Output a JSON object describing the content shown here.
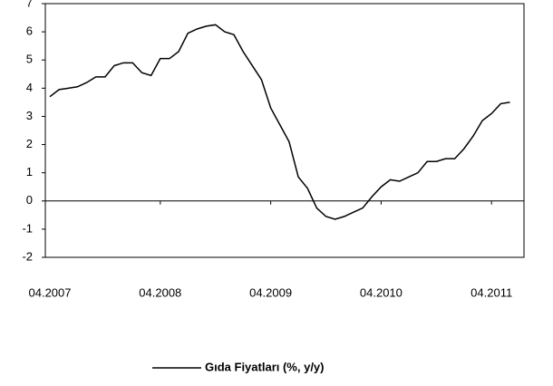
{
  "chart_data": {
    "type": "line",
    "categories": [
      "04.2007",
      null,
      null,
      null,
      null,
      null,
      null,
      null,
      null,
      null,
      null,
      null,
      "04.2008",
      null,
      null,
      null,
      null,
      null,
      null,
      null,
      null,
      null,
      null,
      null,
      "04.2009",
      null,
      null,
      null,
      null,
      null,
      null,
      null,
      null,
      null,
      null,
      null,
      "04.2010",
      null,
      null,
      null,
      null,
      null,
      null,
      null,
      null,
      null,
      null,
      null,
      "04.2011",
      null,
      null
    ],
    "series": [
      {
        "name": "Gıda Fiyatları (%, y/y)",
        "color": "#000000",
        "values": [
          3.7,
          3.95,
          4.0,
          4.05,
          4.2,
          4.4,
          4.4,
          4.8,
          4.9,
          4.9,
          4.55,
          4.45,
          5.05,
          5.05,
          5.3,
          5.95,
          6.1,
          6.2,
          6.25,
          6.0,
          5.9,
          5.3,
          4.8,
          4.3,
          3.3,
          2.7,
          2.1,
          0.85,
          0.45,
          -0.25,
          -0.55,
          -0.65,
          -0.55,
          -0.4,
          -0.25,
          0.15,
          0.5,
          0.75,
          0.7,
          0.85,
          1.0,
          1.4,
          1.4,
          1.5,
          1.5,
          1.85,
          2.3,
          2.85,
          3.1,
          3.45,
          3.5
        ]
      }
    ],
    "ylim": [
      -2,
      7
    ],
    "yticks": [
      -2,
      -1,
      0,
      1,
      2,
      3,
      4,
      5,
      6,
      7
    ],
    "legend": "bottom"
  }
}
